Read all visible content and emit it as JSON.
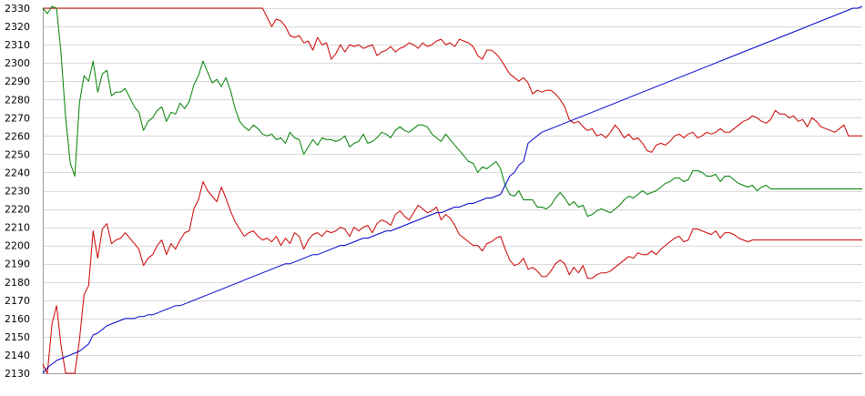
{
  "chart_data": {
    "type": "line",
    "title": "",
    "xlabel": "",
    "ylabel": "",
    "ylim": [
      2130,
      2330
    ],
    "y_ticks": [
      2130,
      2140,
      2150,
      2160,
      2170,
      2180,
      2190,
      2200,
      2210,
      2220,
      2230,
      2240,
      2250,
      2260,
      2270,
      2280,
      2290,
      2300,
      2310,
      2320,
      2330
    ],
    "grid": true,
    "legend": "none",
    "x": [
      0,
      1,
      2,
      3,
      4,
      5,
      6,
      7,
      8,
      9,
      10,
      11,
      12,
      13,
      14,
      15,
      16,
      17,
      18,
      19,
      20,
      21,
      22,
      23,
      24,
      25,
      26,
      27,
      28,
      29,
      30,
      31,
      32,
      33,
      34,
      35,
      36,
      37,
      38,
      39,
      40,
      41,
      42,
      43,
      44,
      45,
      46,
      47,
      48,
      49,
      50,
      51,
      52,
      53,
      54,
      55,
      56,
      57,
      58,
      59,
      60,
      61,
      62,
      63,
      64,
      65,
      66,
      67,
      68,
      69,
      70,
      71,
      72,
      73,
      74,
      75,
      76,
      77,
      78,
      79,
      80,
      81,
      82,
      83,
      84,
      85,
      86,
      87,
      88,
      89,
      90,
      91,
      92,
      93,
      94,
      95,
      96,
      97,
      98,
      99,
      100,
      101,
      102,
      103,
      104,
      105,
      106,
      107,
      108,
      109,
      110,
      111,
      112,
      113,
      114,
      115,
      116,
      117,
      118,
      119,
      120,
      121,
      122,
      123,
      124,
      125,
      126,
      127,
      128,
      129,
      130,
      131,
      132,
      133,
      134,
      135,
      136,
      137,
      138,
      139,
      140,
      141,
      142,
      143,
      144,
      145,
      146,
      147,
      148,
      149,
      150,
      151,
      152,
      153,
      154,
      155,
      156,
      157,
      158,
      159,
      160,
      161,
      162,
      163,
      164,
      165,
      166,
      167,
      168,
      169,
      170,
      171,
      172,
      173,
      174,
      175,
      176,
      177,
      178,
      179
    ],
    "series": [
      {
        "color": "#cc0000",
        "values": [
          2330,
          2330,
          2330,
          2330,
          2330,
          2330,
          2330,
          2330,
          2330,
          2330,
          2330,
          2330,
          2330,
          2330,
          2330,
          2330,
          2330,
          2330,
          2330,
          2330,
          2330,
          2330,
          2330,
          2330,
          2330,
          2330,
          2330,
          2330,
          2330,
          2330,
          2330,
          2330,
          2330,
          2330,
          2330,
          2330,
          2330,
          2330,
          2330,
          2330,
          2330,
          2330,
          2330,
          2330,
          2330,
          2330,
          2330,
          2330,
          2330,
          2325,
          2320,
          2324,
          2323,
          2320,
          2315,
          2314,
          2315,
          2311,
          2312,
          2307,
          2314,
          2310,
          2311,
          2302,
          2305,
          2310,
          2306,
          2310,
          2309,
          2310,
          2308,
          2309,
          2310,
          2304,
          2306,
          2307,
          2309,
          2306,
          2308,
          2309,
          2311,
          2310,
          2308,
          2311,
          2309,
          2310,
          2312,
          2313,
          2310,
          2311,
          2309,
          2313,
          2312,
          2311,
          2309,
          2304,
          2302,
          2307,
          2307,
          2305,
          2302,
          2298,
          2294,
          2292,
          2290,
          2292,
          2289,
          2283,
          2285,
          2284,
          2285,
          2285,
          2283,
          2280,
          2276,
          2269,
          2267,
          2268,
          2265,
          2263,
          2264,
          2260,
          2261,
          2259,
          2262,
          2266,
          2263,
          2259,
          2261,
          2258,
          2259,
          2256,
          2252,
          2251,
          2255,
          2256,
          2255,
          2257,
          2260,
          2261,
          2259,
          2261,
          2262,
          2259,
          2260,
          2262,
          2261,
          2262,
          2264,
          2262,
          2262,
          2264,
          2266,
          2268,
          2269,
          2271,
          2270,
          2268,
          2267,
          2269,
          2274,
          2272,
          2272,
          2270,
          2271,
          2268,
          2269,
          2265,
          2270,
          2268,
          2265,
          2264,
          2263,
          2262,
          2264,
          2266,
          2260,
          2260,
          2260,
          2260
        ]
      },
      {
        "color": "#008000",
        "values": [
          2330,
          2327,
          2331,
          2330,
          2305,
          2270,
          2245,
          2238,
          2278,
          2293,
          2290,
          2301,
          2284,
          2294,
          2296,
          2282,
          2284,
          2284,
          2286,
          2281,
          2276,
          2273,
          2263,
          2268,
          2270,
          2274,
          2276,
          2268,
          2273,
          2272,
          2278,
          2275,
          2279,
          2288,
          2293,
          2301,
          2295,
          2289,
          2291,
          2287,
          2292,
          2285,
          2275,
          2268,
          2265,
          2263,
          2266,
          2264,
          2261,
          2260,
          2261,
          2258,
          2259,
          2256,
          2262,
          2259,
          2258,
          2250,
          2254,
          2258,
          2255,
          2259,
          2258,
          2258,
          2257,
          2258,
          2260,
          2254,
          2256,
          2257,
          2261,
          2256,
          2257,
          2259,
          2262,
          2261,
          2259,
          2263,
          2265,
          2263,
          2262,
          2264,
          2266,
          2266,
          2265,
          2261,
          2259,
          2257,
          2261,
          2258,
          2255,
          2252,
          2249,
          2246,
          2245,
          2240,
          2243,
          2242,
          2244,
          2246,
          2242,
          2233,
          2228,
          2227,
          2230,
          2225,
          2225,
          2225,
          2221,
          2221,
          2220,
          2222,
          2226,
          2229,
          2226,
          2222,
          2224,
          2221,
          2222,
          2216,
          2217,
          2219,
          2220,
          2219,
          2218,
          2220,
          2222,
          2225,
          2227,
          2226,
          2228,
          2230,
          2228,
          2229,
          2230,
          2232,
          2234,
          2235,
          2237,
          2237,
          2235,
          2236,
          2241,
          2241,
          2240,
          2238,
          2238,
          2239,
          2235,
          2238,
          2238,
          2236,
          2234,
          2233,
          2232,
          2233,
          2230,
          2232,
          2233,
          2231,
          2231,
          2231,
          2231,
          2231,
          2231,
          2231,
          2231,
          2231,
          2231,
          2231,
          2231,
          2231,
          2231,
          2231,
          2231,
          2231,
          2231,
          2231,
          2231,
          2231
        ]
      },
      {
        "color": "#cc0000",
        "values": [
          2135,
          2130,
          2157,
          2167,
          2145,
          2130,
          2130,
          2130,
          2148,
          2173,
          2178,
          2208,
          2193,
          2209,
          2212,
          2201,
          2203,
          2204,
          2207,
          2204,
          2201,
          2198,
          2189,
          2193,
          2195,
          2200,
          2203,
          2195,
          2201,
          2198,
          2203,
          2207,
          2208,
          2220,
          2225,
          2235,
          2230,
          2227,
          2224,
          2232,
          2226,
          2219,
          2213,
          2209,
          2205,
          2207,
          2208,
          2205,
          2203,
          2204,
          2202,
          2205,
          2200,
          2204,
          2201,
          2207,
          2205,
          2198,
          2203,
          2206,
          2207,
          2205,
          2208,
          2207,
          2208,
          2210,
          2209,
          2205,
          2210,
          2208,
          2210,
          2211,
          2207,
          2212,
          2214,
          2213,
          2211,
          2217,
          2219,
          2216,
          2214,
          2218,
          2222,
          2220,
          2218,
          2219,
          2221,
          2214,
          2217,
          2215,
          2211,
          2206,
          2204,
          2202,
          2200,
          2200,
          2197,
          2201,
          2202,
          2204,
          2205,
          2198,
          2192,
          2189,
          2190,
          2193,
          2187,
          2188,
          2186,
          2183,
          2183,
          2186,
          2190,
          2192,
          2190,
          2184,
          2188,
          2185,
          2189,
          2182,
          2182,
          2184,
          2185,
          2185,
          2186,
          2188,
          2190,
          2192,
          2194,
          2193,
          2196,
          2195,
          2195,
          2197,
          2195,
          2198,
          2200,
          2202,
          2204,
          2205,
          2202,
          2203,
          2209,
          2209,
          2208,
          2207,
          2206,
          2208,
          2204,
          2207,
          2207,
          2206,
          2204,
          2203,
          2202,
          2203,
          2203,
          2203,
          2203,
          2203,
          2203,
          2203,
          2203,
          2203,
          2203,
          2203,
          2203,
          2203,
          2203,
          2203,
          2203,
          2203,
          2203,
          2203,
          2203,
          2203,
          2203,
          2203,
          2203,
          2203
        ]
      },
      {
        "color": "#0000cc",
        "values": [
          2130,
          2133,
          2135,
          2137,
          2138,
          2139,
          2140,
          2141,
          2142,
          2144,
          2146,
          2151,
          2152,
          2154,
          2156,
          2157,
          2158,
          2159,
          2160,
          2160,
          2160,
          2161,
          2161,
          2162,
          2162,
          2163,
          2164,
          2165,
          2166,
          2167,
          2167,
          2168,
          2169,
          2170,
          2171,
          2172,
          2173,
          2174,
          2175,
          2176,
          2177,
          2178,
          2179,
          2180,
          2181,
          2182,
          2183,
          2184,
          2185,
          2186,
          2187,
          2188,
          2189,
          2190,
          2190,
          2191,
          2192,
          2193,
          2194,
          2195,
          2195,
          2196,
          2197,
          2198,
          2199,
          2200,
          2200,
          2201,
          2202,
          2203,
          2204,
          2204,
          2205,
          2206,
          2207,
          2208,
          2208,
          2209,
          2210,
          2211,
          2212,
          2213,
          2214,
          2215,
          2216,
          2217,
          2218,
          2218,
          2219,
          2220,
          2221,
          2221,
          2222,
          2223,
          2223,
          2224,
          2225,
          2226,
          2226,
          2227,
          2228,
          2233,
          2238,
          2240,
          2244,
          2246,
          2256,
          2258,
          2260,
          2262,
          2263,
          2264,
          2265,
          2266,
          2267,
          2268,
          2269,
          2270,
          2271,
          2272,
          2273,
          2274,
          2275,
          2276,
          2277,
          2278,
          2279,
          2280,
          2281,
          2282,
          2283,
          2284,
          2285,
          2286,
          2287,
          2288,
          2289,
          2290,
          2291,
          2292,
          2293,
          2294,
          2295,
          2296,
          2297,
          2298,
          2299,
          2300,
          2301,
          2302,
          2303,
          2304,
          2305,
          2306,
          2307,
          2308,
          2309,
          2310,
          2311,
          2312,
          2313,
          2314,
          2315,
          2316,
          2317,
          2318,
          2319,
          2320,
          2321,
          2322,
          2323,
          2324,
          2325,
          2326,
          2327,
          2328,
          2329,
          2330,
          2330,
          2331
        ]
      }
    ]
  }
}
